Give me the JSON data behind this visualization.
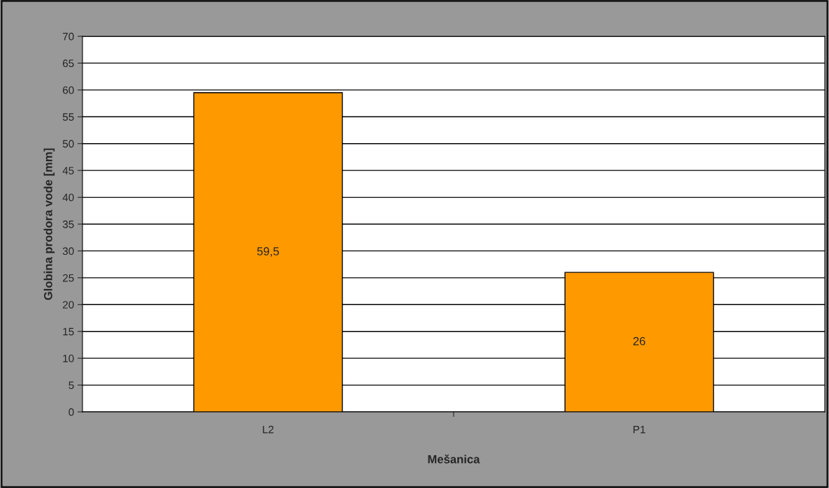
{
  "chart_data": {
    "type": "bar",
    "xlabel": "Mešanica",
    "ylabel": "Globina prodora vode [mm]",
    "categories": [
      "L2",
      "P1"
    ],
    "values": [
      59.5,
      26
    ],
    "color": "#ff9900",
    "value_labels": [
      "59,5",
      "26"
    ],
    "ylim": [
      0,
      70
    ],
    "yticks": [
      0,
      5,
      10,
      15,
      20,
      25,
      30,
      35,
      40,
      45,
      50,
      55,
      60,
      65,
      70
    ],
    "grid": "y"
  }
}
